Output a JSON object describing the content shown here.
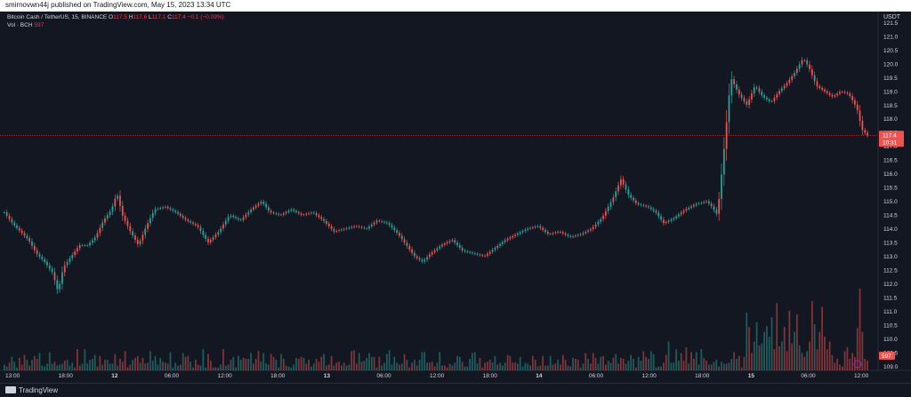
{
  "header": {
    "published": "smirnovwn44j published on TradingView.com, May 15, 2023 13:34 UTC"
  },
  "legend": {
    "symbol": "Bitcoin Cash / TetherUS, 15, BINANCE",
    "o_label": "O",
    "o": "117.5",
    "h_label": "H",
    "h": "117.6",
    "l_label": "L",
    "l": "117.1",
    "c_label": "C",
    "c": "117.4",
    "change": "−0.1 (−0.09%)",
    "vol_label": "Vol · BCH",
    "vol": "597"
  },
  "price_axis": {
    "unit": "USDT"
  },
  "price_badge": {
    "price": "117.4",
    "countdown": "10:31"
  },
  "volume_badge": "597",
  "footer": {
    "brand": "TradingView"
  },
  "colors": {
    "up": "#26a69a",
    "down": "#ef5350",
    "bg": "#131722",
    "grid": "#1e222d",
    "text": "#d1d4dc"
  },
  "chart_data": {
    "type": "candlestick",
    "title": "Bitcoin Cash / TetherUS, 15, BINANCE",
    "x_tick_labels": [
      "13:00",
      "18:00",
      "12",
      "06:00",
      "12:00",
      "18:00",
      "13",
      "06:00",
      "12:00",
      "18:00",
      "14",
      "06:00",
      "12:00",
      "18:00",
      "15",
      "06:00",
      "12:00"
    ],
    "y_ticks": [
      109.0,
      109.5,
      110.0,
      110.5,
      111.0,
      111.5,
      112.0,
      112.5,
      113.0,
      113.5,
      114.0,
      114.5,
      115.0,
      115.5,
      116.0,
      116.5,
      117.0,
      117.5,
      118.0,
      118.5,
      119.0,
      119.5,
      120.0,
      120.5,
      121.0,
      121.5
    ],
    "ylim": [
      108.85,
      121.9
    ],
    "last_price": 117.4,
    "grid": false,
    "price_path": [
      [
        0,
        114.6
      ],
      [
        3,
        114.2
      ],
      [
        6,
        113.9
      ],
      [
        9,
        113.6
      ],
      [
        12,
        113.1
      ],
      [
        15,
        112.8
      ],
      [
        18,
        112.4
      ],
      [
        20,
        111.7
      ],
      [
        22,
        112.6
      ],
      [
        25,
        113.0
      ],
      [
        28,
        113.4
      ],
      [
        31,
        113.4
      ],
      [
        34,
        113.7
      ],
      [
        37,
        114.3
      ],
      [
        40,
        114.7
      ],
      [
        42,
        115.3
      ],
      [
        44,
        114.5
      ],
      [
        47,
        113.9
      ],
      [
        50,
        113.4
      ],
      [
        53,
        114.1
      ],
      [
        56,
        114.7
      ],
      [
        60,
        114.8
      ],
      [
        64,
        114.6
      ],
      [
        68,
        114.3
      ],
      [
        72,
        114.1
      ],
      [
        76,
        113.5
      ],
      [
        80,
        113.9
      ],
      [
        84,
        114.5
      ],
      [
        88,
        114.3
      ],
      [
        92,
        114.7
      ],
      [
        96,
        115.0
      ],
      [
        99,
        114.6
      ],
      [
        103,
        114.5
      ],
      [
        107,
        114.7
      ],
      [
        111,
        114.5
      ],
      [
        115,
        114.6
      ],
      [
        119,
        114.3
      ],
      [
        123,
        113.9
      ],
      [
        127,
        114.0
      ],
      [
        131,
        114.1
      ],
      [
        135,
        114.0
      ],
      [
        139,
        114.3
      ],
      [
        143,
        114.2
      ],
      [
        147,
        113.8
      ],
      [
        150,
        113.4
      ],
      [
        153,
        113.0
      ],
      [
        156,
        112.8
      ],
      [
        159,
        113.1
      ],
      [
        163,
        113.4
      ],
      [
        167,
        113.6
      ],
      [
        171,
        113.2
      ],
      [
        175,
        113.1
      ],
      [
        179,
        113.0
      ],
      [
        183,
        113.3
      ],
      [
        187,
        113.6
      ],
      [
        191,
        113.8
      ],
      [
        195,
        114.0
      ],
      [
        199,
        114.1
      ],
      [
        203,
        113.8
      ],
      [
        207,
        113.9
      ],
      [
        211,
        113.7
      ],
      [
        215,
        113.8
      ],
      [
        219,
        114.0
      ],
      [
        223,
        114.4
      ],
      [
        227,
        115.1
      ],
      [
        230,
        115.8
      ],
      [
        233,
        115.2
      ],
      [
        236,
        114.9
      ],
      [
        240,
        114.8
      ],
      [
        243,
        114.6
      ],
      [
        246,
        114.2
      ],
      [
        250,
        114.4
      ],
      [
        254,
        114.7
      ],
      [
        258,
        114.9
      ],
      [
        262,
        115.0
      ],
      [
        264,
        114.8
      ],
      [
        266,
        114.5
      ],
      [
        268,
        116.4
      ],
      [
        271,
        119.5
      ],
      [
        274,
        118.9
      ],
      [
        277,
        118.5
      ],
      [
        280,
        119.2
      ],
      [
        283,
        118.8
      ],
      [
        286,
        118.6
      ],
      [
        289,
        119.0
      ],
      [
        292,
        119.3
      ],
      [
        295,
        119.7
      ],
      [
        298,
        120.2
      ],
      [
        300,
        119.9
      ],
      [
        303,
        119.2
      ],
      [
        306,
        119.0
      ],
      [
        309,
        118.8
      ],
      [
        312,
        119.0
      ],
      [
        315,
        118.9
      ],
      [
        318,
        118.4
      ],
      [
        320,
        117.6
      ],
      [
        322,
        117.4
      ]
    ],
    "volume": {
      "values": [
        6,
        4,
        8,
        14,
        9,
        3,
        13,
        6,
        16,
        11,
        5,
        11,
        15,
        12,
        18,
        5,
        4,
        7,
        19,
        7,
        9,
        5,
        6,
        7,
        10,
        11,
        5,
        8,
        3,
        22,
        5,
        7,
        22,
        7,
        11,
        12,
        16,
        4,
        15,
        6,
        11,
        11,
        7,
        7,
        17,
        5,
        12,
        9,
        20,
        3,
        6,
        11,
        13,
        15,
        8,
        13,
        7,
        8,
        20,
        10,
        15,
        6,
        13,
        9,
        8,
        7,
        19,
        3,
        8,
        5,
        6,
        18,
        14,
        15,
        9,
        3,
        11,
        6,
        5,
        22,
        3,
        17,
        10,
        3,
        3,
        3,
        6,
        22,
        5,
        6,
        11,
        14,
        3,
        15,
        11,
        13,
        12,
        12,
        18,
        7,
        12,
        20,
        9,
        18,
        7,
        6,
        17,
        14,
        11,
        3,
        17,
        12,
        5,
        4,
        3,
        6,
        13,
        12,
        14,
        13,
        7,
        11,
        4,
        7,
        12,
        9,
        14,
        17,
        5,
        6,
        15,
        5,
        8,
        9,
        5,
        8,
        5,
        6,
        20,
        21,
        7,
        18,
        9,
        10,
        13,
        18,
        14,
        14,
        3,
        14,
        5,
        8,
        17,
        21,
        6,
        14,
        8,
        6,
        7,
        17,
        11,
        3,
        8,
        11,
        5,
        11,
        19,
        19,
        8,
        8,
        9,
        4,
        8,
        19,
        5,
        5,
        3,
        7,
        5,
        8,
        15,
        14,
        9,
        4,
        4,
        12,
        18,
        19,
        7,
        13,
        3,
        8,
        9,
        11,
        8,
        15,
        6,
        8,
        5,
        8,
        16,
        15,
        8,
        8,
        7,
        14,
        4,
        8,
        7,
        5,
        15,
        11,
        4,
        5,
        15,
        5,
        5,
        15,
        6,
        7,
        11,
        6,
        16,
        11,
        5,
        4,
        13,
        12,
        11,
        3,
        7,
        18,
        12,
        7,
        18,
        13,
        7,
        14,
        15,
        6,
        10,
        8,
        13,
        17,
        7,
        13,
        12,
        7,
        10,
        16,
        12,
        3,
        14,
        10,
        20,
        14,
        12,
        20,
        17,
        3,
        4,
        4,
        8,
        16,
        30,
        8,
        8,
        22,
        10,
        18,
        10,
        24,
        7,
        19,
        12,
        19,
        6,
        22,
        13,
        10,
        6,
        6,
        9,
        11,
        4,
        9,
        7,
        7,
        8,
        12,
        19,
        12,
        15,
        3,
        14,
        60,
        45,
        18,
        30,
        50,
        26,
        28,
        40,
        46,
        35,
        55,
        22,
        70,
        25,
        30,
        45,
        20,
        62,
        28,
        40,
        58,
        26,
        18,
        14,
        20,
        30,
        72,
        48,
        22,
        40,
        66,
        35,
        22,
        30,
        16,
        8,
        12,
        6,
        4,
        20,
        24,
        12,
        18,
        14,
        44,
        85,
        40,
        12,
        10
      ]
    },
    "up_flags": [
      1,
      1,
      0,
      1,
      1,
      1,
      0,
      0,
      0,
      1,
      0,
      1,
      0,
      0,
      1,
      1,
      1,
      1,
      1,
      1,
      0,
      1,
      1,
      1,
      0,
      1,
      1,
      1,
      0,
      0,
      0,
      1,
      1,
      1,
      1,
      1,
      1,
      0,
      0,
      1,
      0,
      1,
      1,
      1,
      0,
      1,
      0,
      0,
      0,
      0,
      0,
      1,
      0,
      0,
      1,
      0,
      1,
      0,
      1,
      1,
      1,
      1,
      1,
      0,
      1,
      0,
      1,
      1,
      1,
      1,
      0,
      1,
      0,
      0,
      1,
      0,
      0,
      0,
      1,
      1,
      1,
      0,
      0,
      1,
      0,
      1,
      1,
      0,
      1,
      1,
      0,
      1,
      1,
      1,
      1,
      0,
      0,
      1,
      1,
      0,
      0,
      0,
      1,
      1,
      1,
      1,
      0,
      0,
      1,
      0,
      1,
      0,
      0,
      1,
      1,
      1,
      1,
      0,
      0,
      1,
      0,
      0,
      1,
      1,
      0,
      0,
      0,
      1,
      0,
      0,
      0,
      1,
      0,
      0,
      1,
      0,
      1,
      1,
      0,
      0,
      0,
      1,
      0,
      1,
      1,
      1,
      1,
      0,
      1,
      0,
      1,
      1,
      1,
      1,
      1,
      1,
      1,
      0,
      1,
      0,
      1,
      0,
      0,
      1,
      0,
      1,
      1,
      1,
      1,
      0,
      0,
      0,
      1,
      1,
      0,
      0,
      0,
      1,
      0,
      1,
      1,
      1,
      0,
      1,
      1,
      1,
      1,
      1,
      1,
      0,
      0,
      0,
      0,
      0,
      1,
      1,
      0,
      1,
      1,
      1,
      0,
      0,
      0,
      0,
      1,
      1,
      1,
      1,
      1,
      1,
      0,
      0,
      1,
      0,
      0,
      1,
      0,
      1,
      0,
      0,
      1,
      0,
      0,
      0,
      1,
      0,
      1,
      0,
      0,
      1,
      1,
      0,
      1,
      0,
      0,
      0,
      1,
      1,
      0,
      0,
      1,
      1,
      0,
      1,
      0,
      0,
      0,
      1,
      1,
      1,
      1,
      0,
      1,
      1,
      0,
      0,
      1,
      1,
      1,
      0,
      1,
      1,
      0,
      0,
      1,
      1,
      1,
      1,
      1,
      0,
      0,
      0,
      1,
      0,
      0,
      1,
      1,
      1,
      0,
      0,
      1,
      0,
      1,
      1,
      0,
      1,
      1,
      0,
      1,
      1,
      0,
      1,
      0,
      1,
      0,
      1,
      0,
      0,
      1,
      1,
      0,
      1,
      1,
      1,
      1,
      1,
      0,
      0,
      0,
      1,
      0,
      0,
      0,
      0,
      1,
      0,
      1,
      0,
      0,
      1,
      0,
      0,
      1,
      0,
      0
    ]
  }
}
